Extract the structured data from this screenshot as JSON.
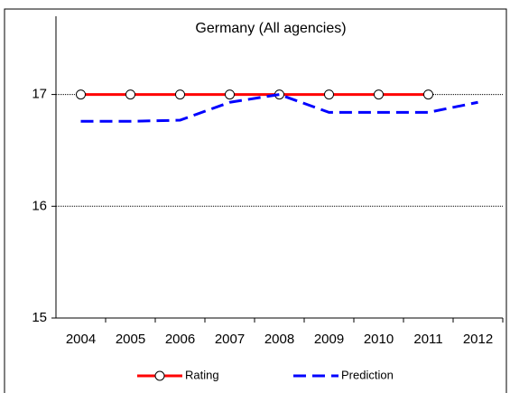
{
  "chart_data": {
    "type": "line",
    "title": "Germany (All agencies)",
    "categories": [
      "2004",
      "2005",
      "2006",
      "2007",
      "2008",
      "2009",
      "2010",
      "2011",
      "2012"
    ],
    "series": [
      {
        "name": "Rating",
        "color": "#ff0000",
        "values": [
          17,
          17,
          17,
          17,
          17,
          17,
          17,
          17,
          null
        ]
      },
      {
        "name": "Prediction",
        "color": "#0000ff",
        "values": [
          16.76,
          16.76,
          16.77,
          16.93,
          17.0,
          16.84,
          16.84,
          16.84,
          16.93
        ]
      }
    ],
    "ylim": [
      15,
      17.7
    ],
    "yticks": [
      15,
      16,
      17
    ],
    "grid": true,
    "legend": "bottom"
  }
}
